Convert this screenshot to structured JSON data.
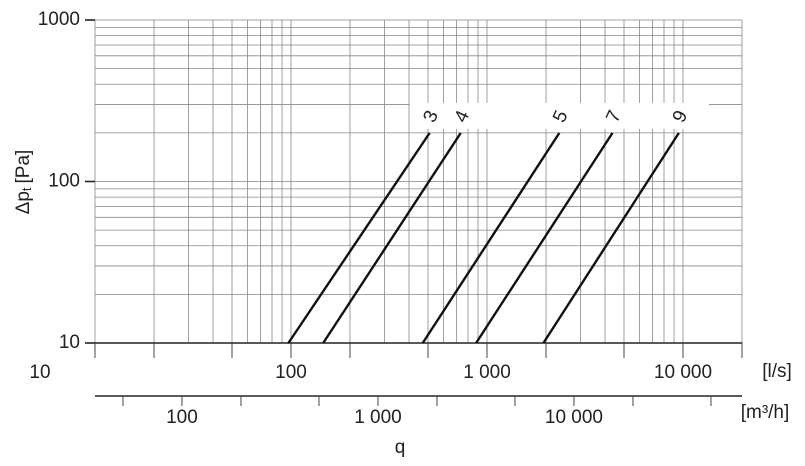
{
  "chart_data": {
    "type": "line",
    "xscale": "log",
    "yscale": "log",
    "grid": true,
    "xlim": [
      10,
      20000
    ],
    "ylim": [
      10,
      1000
    ],
    "xticks": [
      10,
      100,
      {
        "value": 1000,
        "label": "1 000"
      },
      {
        "value": 10000,
        "label": "10 000"
      }
    ],
    "xticks_minor": [
      20,
      50,
      200,
      500,
      2000,
      5000,
      20000
    ],
    "xgrid": [
      10,
      20,
      30,
      40,
      50,
      60,
      70,
      80,
      90,
      100,
      200,
      300,
      400,
      500,
      600,
      700,
      800,
      900,
      1000,
      2000,
      3000,
      4000,
      5000,
      6000,
      7000,
      8000,
      9000,
      10000,
      20000
    ],
    "yticks": [
      10,
      100,
      1000
    ],
    "ygrid": [
      10,
      20,
      30,
      40,
      50,
      60,
      70,
      80,
      90,
      100,
      200,
      300,
      400,
      500,
      600,
      700,
      800,
      900,
      1000
    ],
    "x_unit": "[l/s]",
    "x2lim": [
      36,
      72000
    ],
    "x2ticks": [
      100,
      {
        "value": 1000,
        "label": "1 000"
      },
      {
        "value": 10000,
        "label": "10 000"
      }
    ],
    "x2ticks_minor": [
      50,
      200,
      500,
      2000,
      5000,
      20000,
      50000
    ],
    "x2_unit": "[m³/h]",
    "x_label": "q",
    "y_label": "Δp",
    "y_label_sub": "t",
    "y_label_unit": "[Pa]",
    "series": [
      {
        "name": "3",
        "color": "#111",
        "x": [
          97,
          510
        ],
        "values": [
          10,
          200
        ]
      },
      {
        "name": "4",
        "color": "#111",
        "x": [
          146,
          735
        ],
        "values": [
          10,
          200
        ]
      },
      {
        "name": "5",
        "color": "#111",
        "x": [
          470,
          2340
        ],
        "values": [
          10,
          200
        ]
      },
      {
        "name": "7",
        "color": "#111",
        "x": [
          880,
          4370
        ],
        "values": [
          10,
          200
        ]
      },
      {
        "name": "9",
        "color": "#111",
        "x": [
          1940,
          9530
        ],
        "values": [
          10,
          200
        ]
      }
    ]
  }
}
